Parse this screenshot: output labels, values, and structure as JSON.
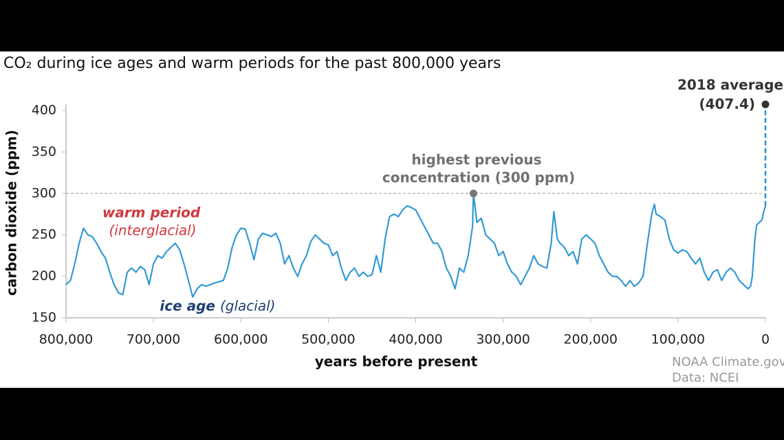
{
  "chart_data": {
    "type": "line",
    "title": "CO₂ during ice ages and warm periods for the past 800,000 years",
    "y_label": "carbon dioxide (ppm)",
    "x_label": "years before present",
    "color": "#3399d4",
    "xlim": [
      800000,
      0
    ],
    "ylim": [
      150,
      400
    ],
    "xticks": [
      {
        "value": 800000,
        "label": "800,000"
      },
      {
        "value": 700000,
        "label": "700,000"
      },
      {
        "value": 600000,
        "label": "600,000"
      },
      {
        "value": 500000,
        "label": "500,000"
      },
      {
        "value": 400000,
        "label": "400,000"
      },
      {
        "value": 300000,
        "label": "300,000"
      },
      {
        "value": 200000,
        "label": "200,000"
      },
      {
        "value": 100000,
        "label": "100,000"
      },
      0
    ],
    "yticks": [
      150,
      200,
      250,
      300,
      350,
      400
    ],
    "x": [
      800000,
      795000,
      790000,
      785000,
      780000,
      775000,
      770000,
      765000,
      760000,
      755000,
      750000,
      745000,
      740000,
      735000,
      730000,
      725000,
      720000,
      715000,
      710000,
      705000,
      700000,
      695000,
      690000,
      685000,
      680000,
      675000,
      670000,
      665000,
      660000,
      655000,
      650000,
      645000,
      640000,
      630000,
      620000,
      615000,
      610000,
      605000,
      600000,
      595000,
      590000,
      585000,
      580000,
      575000,
      570000,
      565000,
      560000,
      555000,
      550000,
      545000,
      540000,
      535000,
      530000,
      525000,
      520000,
      515000,
      510000,
      505000,
      500000,
      495000,
      490000,
      485000,
      480000,
      475000,
      470000,
      465000,
      460000,
      455000,
      450000,
      445000,
      440000,
      435000,
      430000,
      425000,
      420000,
      415000,
      410000,
      405000,
      400000,
      395000,
      390000,
      385000,
      380000,
      375000,
      370000,
      365000,
      360000,
      355000,
      350000,
      345000,
      340000,
      335000,
      334000,
      330000,
      325000,
      320000,
      315000,
      310000,
      305000,
      300000,
      295000,
      290000,
      285000,
      280000,
      275000,
      270000,
      265000,
      260000,
      255000,
      250000,
      245000,
      242000,
      238000,
      235000,
      230000,
      225000,
      220000,
      215000,
      210000,
      205000,
      200000,
      195000,
      190000,
      185000,
      180000,
      175000,
      170000,
      165000,
      160000,
      155000,
      150000,
      145000,
      140000,
      135000,
      130000,
      127000,
      125000,
      120000,
      115000,
      110000,
      105000,
      100000,
      95000,
      90000,
      85000,
      80000,
      75000,
      70000,
      65000,
      60000,
      55000,
      50000,
      45000,
      40000,
      35000,
      30000,
      25000,
      20000,
      17000,
      15000,
      12000,
      10000,
      7000,
      4000,
      2000,
      0
    ],
    "values": [
      190,
      195,
      215,
      240,
      258,
      250,
      248,
      240,
      230,
      222,
      205,
      190,
      180,
      178,
      205,
      210,
      205,
      212,
      208,
      190,
      215,
      225,
      222,
      230,
      235,
      240,
      232,
      215,
      195,
      175,
      185,
      190,
      188,
      192,
      195,
      210,
      235,
      250,
      258,
      257,
      240,
      220,
      245,
      252,
      250,
      248,
      252,
      240,
      215,
      225,
      210,
      200,
      215,
      225,
      242,
      250,
      245,
      240,
      238,
      225,
      230,
      210,
      195,
      205,
      210,
      200,
      205,
      200,
      202,
      225,
      205,
      245,
      272,
      275,
      272,
      280,
      285,
      283,
      280,
      270,
      260,
      250,
      240,
      240,
      230,
      210,
      200,
      185,
      210,
      205,
      225,
      260,
      300,
      265,
      270,
      250,
      245,
      240,
      225,
      230,
      215,
      205,
      200,
      190,
      200,
      210,
      225,
      215,
      212,
      210,
      240,
      278,
      245,
      240,
      235,
      225,
      230,
      215,
      245,
      250,
      245,
      240,
      225,
      215,
      205,
      200,
      200,
      195,
      188,
      195,
      188,
      192,
      200,
      240,
      275,
      287,
      275,
      272,
      268,
      245,
      232,
      228,
      232,
      230,
      222,
      215,
      222,
      205,
      195,
      205,
      208,
      195,
      205,
      210,
      205,
      195,
      190,
      185,
      188,
      200,
      245,
      262,
      265,
      268,
      278,
      285
    ],
    "annotations": {
      "current": {
        "label": "2018 average",
        "value_label": "(407.4)",
        "value": 407.4,
        "x": 0
      },
      "highest": {
        "lines": [
          "highest previous",
          "concentration (300 ppm)"
        ],
        "value": 300,
        "x": 334000
      },
      "warm": {
        "label": "warm period",
        "sublabel": "(interglacial)"
      },
      "ice": {
        "label": "ice age",
        "sublabel": "(glacial)"
      }
    },
    "credits": [
      "NOAA Climate.gov",
      "Data: NCEI"
    ]
  }
}
